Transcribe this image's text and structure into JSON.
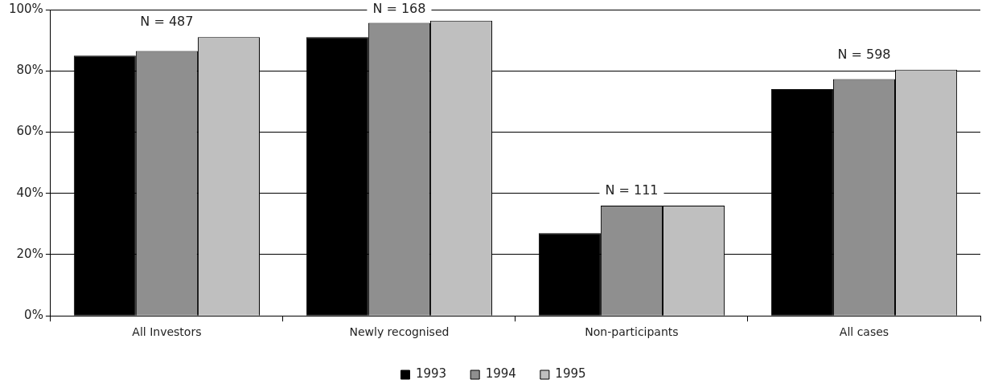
{
  "chart_data": {
    "type": "bar",
    "categories": [
      "All Investors",
      "Newly recognised",
      "Non-participants",
      "All cases"
    ],
    "series": [
      {
        "name": "1993",
        "color": "#000000",
        "values": [
          85,
          91,
          27,
          74
        ]
      },
      {
        "name": "1994",
        "color": "#8f8f8f",
        "values": [
          86.5,
          95.7,
          36,
          77.3
        ]
      },
      {
        "name": "1995",
        "color": "#bfbfbf",
        "values": [
          91,
          96.4,
          36,
          80.4
        ]
      }
    ],
    "ylim": [
      0,
      100
    ],
    "yticks": [
      {
        "value": 0,
        "label": "0%"
      },
      {
        "value": 20,
        "label": "20%"
      },
      {
        "value": 40,
        "label": "40%"
      },
      {
        "value": 60,
        "label": "60%"
      },
      {
        "value": 80,
        "label": "80%"
      },
      {
        "value": 100,
        "label": "100%"
      }
    ],
    "grid": "y",
    "legend": "bottom",
    "annotations": [
      "N = 487",
      "N = 168",
      "N = 111",
      "N = 598"
    ]
  }
}
